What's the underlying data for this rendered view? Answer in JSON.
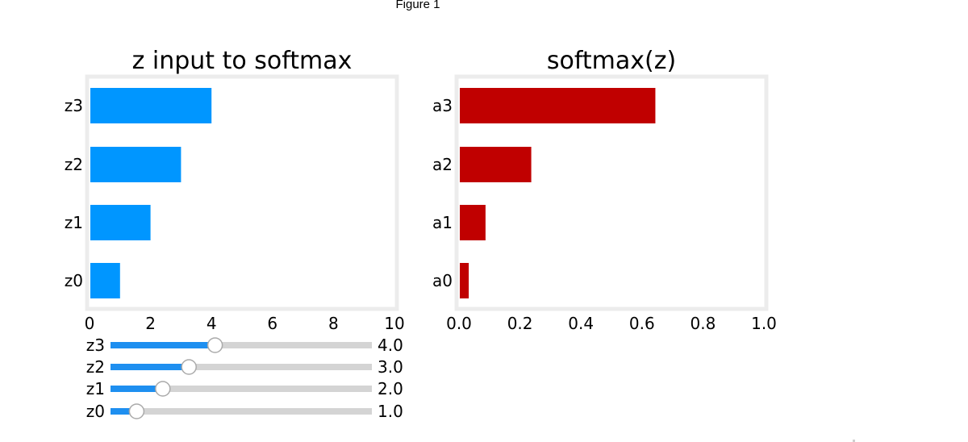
{
  "window": {
    "title": "Figure 1"
  },
  "colors": {
    "left_bar": "#0096ff",
    "right_bar": "#c00000",
    "slider_fill": "#1e8ff0",
    "slider_track": "#d4d4d4",
    "frame": "#ececec"
  },
  "chart_data": [
    {
      "type": "bar",
      "orientation": "horizontal",
      "title": "z input to softmax",
      "categories": [
        "z0",
        "z1",
        "z2",
        "z3"
      ],
      "values": [
        1.0,
        2.0,
        3.0,
        4.0
      ],
      "xlim": [
        0,
        10
      ],
      "xticks": [
        "0",
        "2",
        "4",
        "6",
        "8",
        "10"
      ],
      "xtick_values": [
        0,
        2,
        4,
        6,
        8,
        10
      ],
      "grid": false
    },
    {
      "type": "bar",
      "orientation": "horizontal",
      "title": "softmax(z)",
      "categories": [
        "a0",
        "a1",
        "a2",
        "a3"
      ],
      "values": [
        0.032,
        0.087,
        0.237,
        0.644
      ],
      "xlim": [
        0,
        1.0
      ],
      "xticks": [
        "0.0",
        "0.2",
        "0.4",
        "0.6",
        "0.8",
        "1.0"
      ],
      "xtick_values": [
        0,
        0.2,
        0.4,
        0.6,
        0.8,
        1.0
      ],
      "grid": false
    }
  ],
  "sliders": {
    "min": 0,
    "max": 10,
    "items": [
      {
        "label": "z3",
        "value": 4.0,
        "value_text": "4.0"
      },
      {
        "label": "z2",
        "value": 3.0,
        "value_text": "3.0"
      },
      {
        "label": "z1",
        "value": 2.0,
        "value_text": "2.0"
      },
      {
        "label": "z0",
        "value": 1.0,
        "value_text": "1.0"
      }
    ]
  }
}
